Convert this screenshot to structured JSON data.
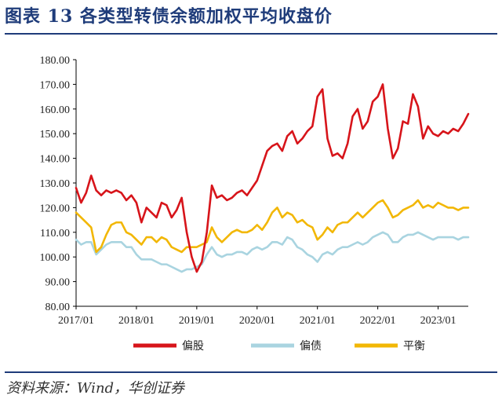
{
  "header": {
    "title": "图表 13  各类型转债余额加权平均收盘价"
  },
  "footer": {
    "source": "资料来源：Wind，华创证券"
  },
  "chart_data": {
    "type": "line",
    "ylim": [
      80,
      180
    ],
    "yticks": [
      "180.00",
      "170.00",
      "160.00",
      "150.00",
      "140.00",
      "130.00",
      "120.00",
      "110.00",
      "100.00",
      "90.00",
      "80.00"
    ],
    "xlim": [
      "2017-01",
      "2023-07"
    ],
    "xticks": [
      "2017/01",
      "2018/01",
      "2019/01",
      "2020/01",
      "2021/01",
      "2022/01",
      "2023/01"
    ],
    "legend_position": "bottom",
    "grid": false,
    "series": [
      {
        "name": "偏股",
        "color": "#d7141a",
        "points": [
          [
            "2017-01",
            128
          ],
          [
            "2017-02",
            122
          ],
          [
            "2017-03",
            126
          ],
          [
            "2017-04",
            133
          ],
          [
            "2017-05",
            127
          ],
          [
            "2017-06",
            125
          ],
          [
            "2017-07",
            127
          ],
          [
            "2017-08",
            126
          ],
          [
            "2017-09",
            127
          ],
          [
            "2017-10",
            126
          ],
          [
            "2017-11",
            123
          ],
          [
            "2017-12",
            125
          ],
          [
            "2018-01",
            122
          ],
          [
            "2018-02",
            114
          ],
          [
            "2018-03",
            120
          ],
          [
            "2018-04",
            118
          ],
          [
            "2018-05",
            116
          ],
          [
            "2018-06",
            122
          ],
          [
            "2018-07",
            121
          ],
          [
            "2018-08",
            116
          ],
          [
            "2018-09",
            119
          ],
          [
            "2018-10",
            124
          ],
          [
            "2018-11",
            110
          ],
          [
            "2018-12",
            100
          ],
          [
            "2019-01",
            94
          ],
          [
            "2019-02",
            98
          ],
          [
            "2019-03",
            110
          ],
          [
            "2019-04",
            129
          ],
          [
            "2019-05",
            124
          ],
          [
            "2019-06",
            125
          ],
          [
            "2019-07",
            123
          ],
          [
            "2019-08",
            124
          ],
          [
            "2019-09",
            126
          ],
          [
            "2019-10",
            127
          ],
          [
            "2019-11",
            125
          ],
          [
            "2019-12",
            128
          ],
          [
            "2020-01",
            131
          ],
          [
            "2020-02",
            137
          ],
          [
            "2020-03",
            143
          ],
          [
            "2020-04",
            145
          ],
          [
            "2020-05",
            146
          ],
          [
            "2020-06",
            143
          ],
          [
            "2020-07",
            149
          ],
          [
            "2020-08",
            151
          ],
          [
            "2020-09",
            146
          ],
          [
            "2020-10",
            148
          ],
          [
            "2020-11",
            151
          ],
          [
            "2020-12",
            153
          ],
          [
            "2021-01",
            165
          ],
          [
            "2021-02",
            168
          ],
          [
            "2021-03",
            148
          ],
          [
            "2021-04",
            141
          ],
          [
            "2021-05",
            142
          ],
          [
            "2021-06",
            140
          ],
          [
            "2021-07",
            146
          ],
          [
            "2021-08",
            157
          ],
          [
            "2021-09",
            160
          ],
          [
            "2021-10",
            152
          ],
          [
            "2021-11",
            155
          ],
          [
            "2021-12",
            163
          ],
          [
            "2022-01",
            165
          ],
          [
            "2022-02",
            170
          ],
          [
            "2022-03",
            152
          ],
          [
            "2022-04",
            140
          ],
          [
            "2022-05",
            144
          ],
          [
            "2022-06",
            155
          ],
          [
            "2022-07",
            154
          ],
          [
            "2022-08",
            166
          ],
          [
            "2022-09",
            161
          ],
          [
            "2022-10",
            148
          ],
          [
            "2022-11",
            153
          ],
          [
            "2022-12",
            150
          ],
          [
            "2023-01",
            149
          ],
          [
            "2023-02",
            151
          ],
          [
            "2023-03",
            150
          ],
          [
            "2023-04",
            152
          ],
          [
            "2023-05",
            151
          ],
          [
            "2023-06",
            154
          ],
          [
            "2023-07",
            158
          ]
        ]
      },
      {
        "name": "偏债",
        "color": "#a9d4e0",
        "points": [
          [
            "2017-01",
            107
          ],
          [
            "2017-02",
            105
          ],
          [
            "2017-03",
            106
          ],
          [
            "2017-04",
            106
          ],
          [
            "2017-05",
            101
          ],
          [
            "2017-06",
            103
          ],
          [
            "2017-07",
            105
          ],
          [
            "2017-08",
            106
          ],
          [
            "2017-09",
            106
          ],
          [
            "2017-10",
            106
          ],
          [
            "2017-11",
            104
          ],
          [
            "2017-12",
            104
          ],
          [
            "2018-01",
            101
          ],
          [
            "2018-02",
            99
          ],
          [
            "2018-03",
            99
          ],
          [
            "2018-04",
            99
          ],
          [
            "2018-05",
            98
          ],
          [
            "2018-06",
            97
          ],
          [
            "2018-07",
            97
          ],
          [
            "2018-08",
            96
          ],
          [
            "2018-09",
            95
          ],
          [
            "2018-10",
            94
          ],
          [
            "2018-11",
            95
          ],
          [
            "2018-12",
            95
          ],
          [
            "2019-01",
            96
          ],
          [
            "2019-02",
            97
          ],
          [
            "2019-03",
            101
          ],
          [
            "2019-04",
            104
          ],
          [
            "2019-05",
            101
          ],
          [
            "2019-06",
            100
          ],
          [
            "2019-07",
            101
          ],
          [
            "2019-08",
            101
          ],
          [
            "2019-09",
            102
          ],
          [
            "2019-10",
            102
          ],
          [
            "2019-11",
            101
          ],
          [
            "2019-12",
            103
          ],
          [
            "2020-01",
            104
          ],
          [
            "2020-02",
            103
          ],
          [
            "2020-03",
            104
          ],
          [
            "2020-04",
            106
          ],
          [
            "2020-05",
            106
          ],
          [
            "2020-06",
            105
          ],
          [
            "2020-07",
            108
          ],
          [
            "2020-08",
            107
          ],
          [
            "2020-09",
            104
          ],
          [
            "2020-10",
            103
          ],
          [
            "2020-11",
            101
          ],
          [
            "2020-12",
            100
          ],
          [
            "2021-01",
            98
          ],
          [
            "2021-02",
            101
          ],
          [
            "2021-03",
            102
          ],
          [
            "2021-04",
            101
          ],
          [
            "2021-05",
            103
          ],
          [
            "2021-06",
            104
          ],
          [
            "2021-07",
            104
          ],
          [
            "2021-08",
            105
          ],
          [
            "2021-09",
            106
          ],
          [
            "2021-10",
            105
          ],
          [
            "2021-11",
            106
          ],
          [
            "2021-12",
            108
          ],
          [
            "2022-01",
            109
          ],
          [
            "2022-02",
            110
          ],
          [
            "2022-03",
            109
          ],
          [
            "2022-04",
            106
          ],
          [
            "2022-05",
            106
          ],
          [
            "2022-06",
            108
          ],
          [
            "2022-07",
            109
          ],
          [
            "2022-08",
            109
          ],
          [
            "2022-09",
            110
          ],
          [
            "2022-10",
            109
          ],
          [
            "2022-11",
            108
          ],
          [
            "2022-12",
            107
          ],
          [
            "2023-01",
            108
          ],
          [
            "2023-02",
            108
          ],
          [
            "2023-03",
            108
          ],
          [
            "2023-04",
            108
          ],
          [
            "2023-05",
            107
          ],
          [
            "2023-06",
            108
          ],
          [
            "2023-07",
            108
          ]
        ]
      },
      {
        "name": "平衡",
        "color": "#f2b705",
        "points": [
          [
            "2017-01",
            118
          ],
          [
            "2017-02",
            116
          ],
          [
            "2017-03",
            114
          ],
          [
            "2017-04",
            112
          ],
          [
            "2017-05",
            102
          ],
          [
            "2017-06",
            104
          ],
          [
            "2017-07",
            109
          ],
          [
            "2017-08",
            113
          ],
          [
            "2017-09",
            114
          ],
          [
            "2017-10",
            114
          ],
          [
            "2017-11",
            110
          ],
          [
            "2017-12",
            109
          ],
          [
            "2018-01",
            107
          ],
          [
            "2018-02",
            105
          ],
          [
            "2018-03",
            108
          ],
          [
            "2018-04",
            108
          ],
          [
            "2018-05",
            106
          ],
          [
            "2018-06",
            108
          ],
          [
            "2018-07",
            107
          ],
          [
            "2018-08",
            104
          ],
          [
            "2018-09",
            103
          ],
          [
            "2018-10",
            102
          ],
          [
            "2018-11",
            104
          ],
          [
            "2018-12",
            104
          ],
          [
            "2019-01",
            104
          ],
          [
            "2019-02",
            105
          ],
          [
            "2019-03",
            106
          ],
          [
            "2019-04",
            112
          ],
          [
            "2019-05",
            108
          ],
          [
            "2019-06",
            106
          ],
          [
            "2019-07",
            108
          ],
          [
            "2019-08",
            110
          ],
          [
            "2019-09",
            111
          ],
          [
            "2019-10",
            110
          ],
          [
            "2019-11",
            110
          ],
          [
            "2019-12",
            111
          ],
          [
            "2020-01",
            113
          ],
          [
            "2020-02",
            111
          ],
          [
            "2020-03",
            114
          ],
          [
            "2020-04",
            118
          ],
          [
            "2020-05",
            120
          ],
          [
            "2020-06",
            116
          ],
          [
            "2020-07",
            118
          ],
          [
            "2020-08",
            117
          ],
          [
            "2020-09",
            114
          ],
          [
            "2020-10",
            115
          ],
          [
            "2020-11",
            113
          ],
          [
            "2020-12",
            112
          ],
          [
            "2021-01",
            107
          ],
          [
            "2021-02",
            109
          ],
          [
            "2021-03",
            112
          ],
          [
            "2021-04",
            110
          ],
          [
            "2021-05",
            113
          ],
          [
            "2021-06",
            114
          ],
          [
            "2021-07",
            114
          ],
          [
            "2021-08",
            116
          ],
          [
            "2021-09",
            118
          ],
          [
            "2021-10",
            116
          ],
          [
            "2021-11",
            118
          ],
          [
            "2021-12",
            120
          ],
          [
            "2022-01",
            122
          ],
          [
            "2022-02",
            123
          ],
          [
            "2022-03",
            120
          ],
          [
            "2022-04",
            116
          ],
          [
            "2022-05",
            117
          ],
          [
            "2022-06",
            119
          ],
          [
            "2022-07",
            120
          ],
          [
            "2022-08",
            121
          ],
          [
            "2022-09",
            123
          ],
          [
            "2022-10",
            120
          ],
          [
            "2022-11",
            121
          ],
          [
            "2022-12",
            120
          ],
          [
            "2023-01",
            122
          ],
          [
            "2023-02",
            121
          ],
          [
            "2023-03",
            120
          ],
          [
            "2023-04",
            120
          ],
          [
            "2023-05",
            119
          ],
          [
            "2023-06",
            120
          ],
          [
            "2023-07",
            120
          ]
        ]
      }
    ]
  }
}
